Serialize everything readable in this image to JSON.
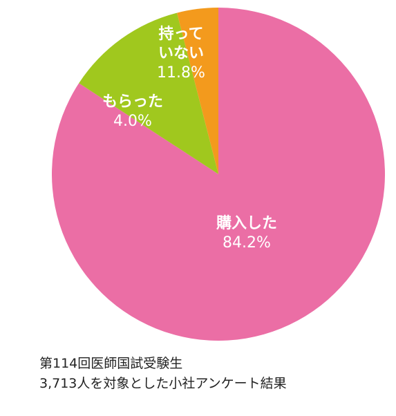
{
  "chart_data": {
    "type": "pie",
    "title": "",
    "slices": [
      {
        "label": "購入した",
        "value": 84.2,
        "value_label": "84.2%",
        "color": "#eb6ea5"
      },
      {
        "label": "持ってない",
        "label_lines": [
          "持って",
          "いない"
        ],
        "value": 11.8,
        "value_label": "11.8%",
        "color": "#a0c81e"
      },
      {
        "label": "もらった",
        "value": 4.0,
        "value_label": "4.0%",
        "color": "#f39a1d"
      }
    ],
    "start": "12 o'clock",
    "direction": "clockwise",
    "legend": "none"
  },
  "caption": {
    "line1": "第114回医師国試受験生",
    "line2": "3,713人を対象とした小社アンケート結果"
  }
}
